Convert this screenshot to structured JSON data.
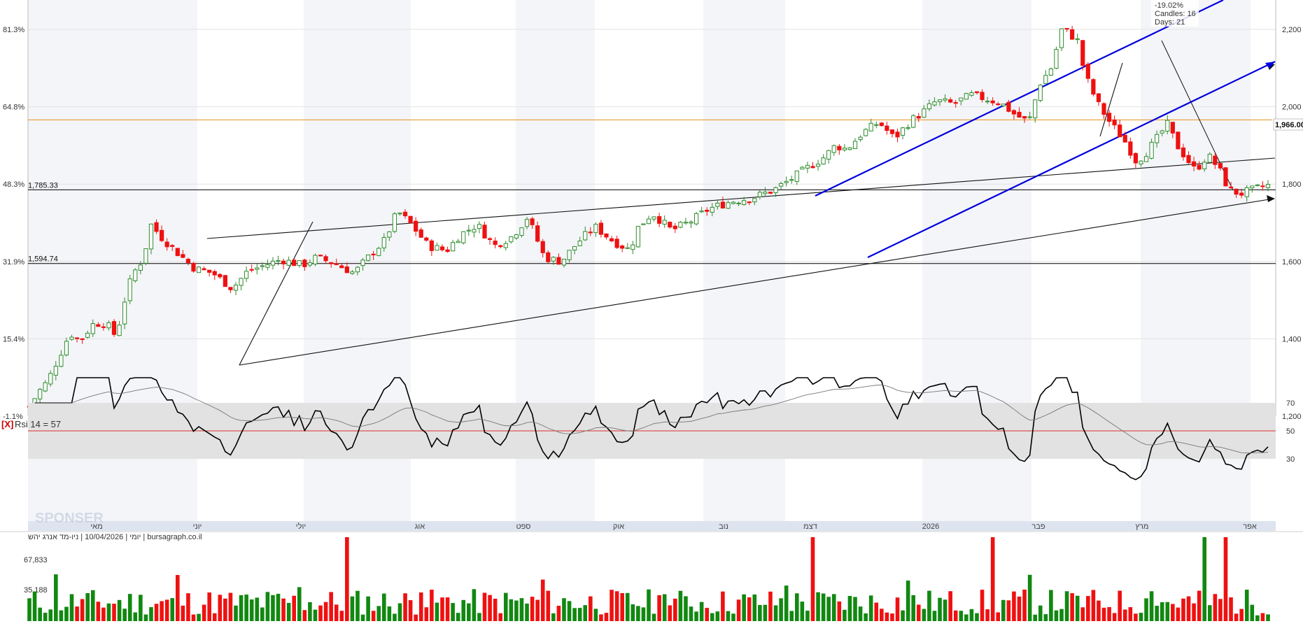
{
  "chart_data": {
    "type": "candlestick",
    "y_ticks": [
      "2,200",
      "2,000",
      "1,800",
      "1,600",
      "1,400",
      "1,200"
    ],
    "pct_ticks": [
      "81.3%",
      "64.8%",
      "48.3%",
      "31.9%",
      "15.4%",
      "-1.1%"
    ],
    "ylim": [
      1200,
      2200
    ],
    "month_labels": [
      "מאי",
      "יוני",
      "יולי",
      "אוג",
      "ספט",
      "אוק",
      "נוב",
      "דצמ",
      "2026",
      "פבר",
      "מרץ",
      "אפר"
    ],
    "levels": [
      {
        "label": "1,785.33",
        "value": 1785.33
      },
      {
        "label": "1,594.74",
        "value": 1594.74
      }
    ],
    "orange_level": 1966,
    "last_price_label": "1,966.00",
    "measure": {
      "pct": "-19.02%",
      "candles": "Candles: 16",
      "days": "Days: 21"
    },
    "rsi": {
      "title": "Rsi 14 = 57",
      "close_button": "[X]",
      "ticks": [
        "70",
        "50",
        "30"
      ],
      "ylim": [
        10,
        90
      ],
      "band": [
        30,
        70
      ]
    },
    "footer": {
      "info": "יומי | 10/04/2026 | ניו-מד אנרג יהש | bursagraph.co.il"
    },
    "watermark": "SPONSER",
    "volume": {
      "ticks": [
        "67,833",
        "35,188"
      ]
    },
    "colors": {
      "up": "#2e8b2e",
      "down": "#ee1111",
      "channel": "#0000dd",
      "orange": "#e8901a",
      "rsi": "#000000"
    }
  }
}
